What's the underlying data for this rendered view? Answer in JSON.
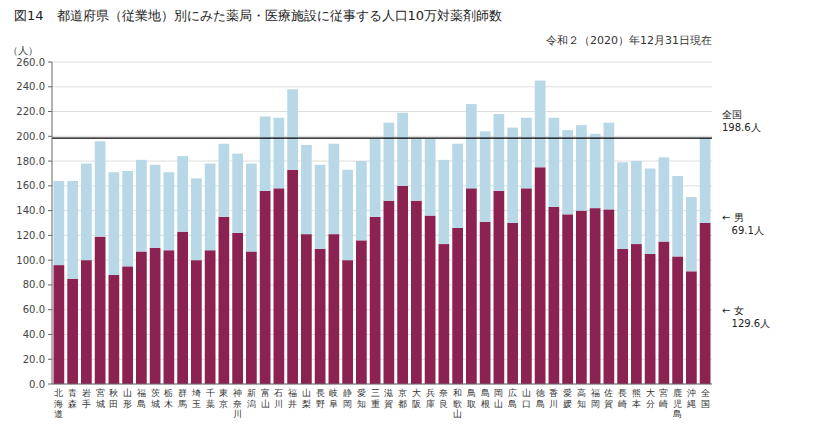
{
  "chart_data": {
    "type": "bar",
    "stacked": true,
    "grid": true,
    "title": "図14　都道府県（従業地）別にみた薬局・医療施設に従事する人口10万対薬剤師数",
    "subtitle": "令和２（2020）年12月31日現在",
    "ylabel": "（人）",
    "ylim": [
      0,
      260
    ],
    "yticks": [
      {
        "value": 0,
        "label": "0.0"
      },
      {
        "value": 20,
        "label": "20.0"
      },
      {
        "value": 40,
        "label": "40.0"
      },
      {
        "value": 60,
        "label": "60.0"
      },
      {
        "value": 80,
        "label": "80.0"
      },
      {
        "value": 100,
        "label": "100.0"
      },
      {
        "value": 120,
        "label": "120.0"
      },
      {
        "value": 140,
        "label": "140.0"
      },
      {
        "value": 160,
        "label": "160.0"
      },
      {
        "value": 180,
        "label": "180.0"
      },
      {
        "value": 200,
        "label": "200.0"
      },
      {
        "value": 220,
        "label": "220.0"
      },
      {
        "value": 240,
        "label": "240.0"
      },
      {
        "value": 260,
        "label": "260.0"
      }
    ],
    "reference_line": 198.6,
    "annotations": [
      {
        "text": "全国\n198.6人",
        "y": 198.6
      },
      {
        "text": "← 男\n   69.1人",
        "y": 129.6
      },
      {
        "text": "← 女\n   129.6人",
        "y": 64.8
      }
    ],
    "categories": [
      "北海道",
      "青森",
      "岩手",
      "宮城",
      "秋田",
      "山形",
      "福島",
      "茨城",
      "栃木",
      "群馬",
      "埼玉",
      "千葉",
      "東京",
      "神奈川",
      "新潟",
      "富山",
      "石川",
      "福井",
      "山梨",
      "長野",
      "岐阜",
      "静岡",
      "愛知",
      "三重",
      "滋賀",
      "京都",
      "大阪",
      "兵庫",
      "奈良",
      "和歌山",
      "鳥取",
      "島根",
      "岡山",
      "広島",
      "山口",
      "徳島",
      "香川",
      "愛媛",
      "高知",
      "福岡",
      "佐賀",
      "長崎",
      "熊本",
      "大分",
      "宮崎",
      "鹿児島",
      "沖縄",
      "全国"
    ],
    "series": [
      {
        "color": "#8B2252",
        "values": [
          96,
          85,
          100,
          119,
          88,
          95,
          107,
          110,
          108,
          123,
          100,
          108,
          135,
          122,
          107,
          156,
          158,
          173,
          121,
          109,
          121,
          100,
          116,
          135,
          148,
          160,
          148,
          136,
          113,
          126,
          158,
          131,
          156,
          130,
          158,
          175,
          143,
          137,
          140,
          142,
          141,
          109,
          113,
          105,
          115,
          103,
          91,
          130
        ]
      },
      {
        "color": "#B8D8E8",
        "values": [
          68,
          79,
          78,
          77,
          83,
          77,
          74,
          67,
          63,
          61,
          66,
          70,
          59,
          64,
          71,
          60,
          57,
          65,
          72,
          68,
          73,
          73,
          64,
          63,
          63,
          59,
          50,
          62,
          68,
          68,
          68,
          73,
          62,
          77,
          57,
          70,
          72,
          68,
          69,
          60,
          70,
          70,
          67,
          69,
          68,
          65,
          60,
          69
        ]
      }
    ]
  }
}
